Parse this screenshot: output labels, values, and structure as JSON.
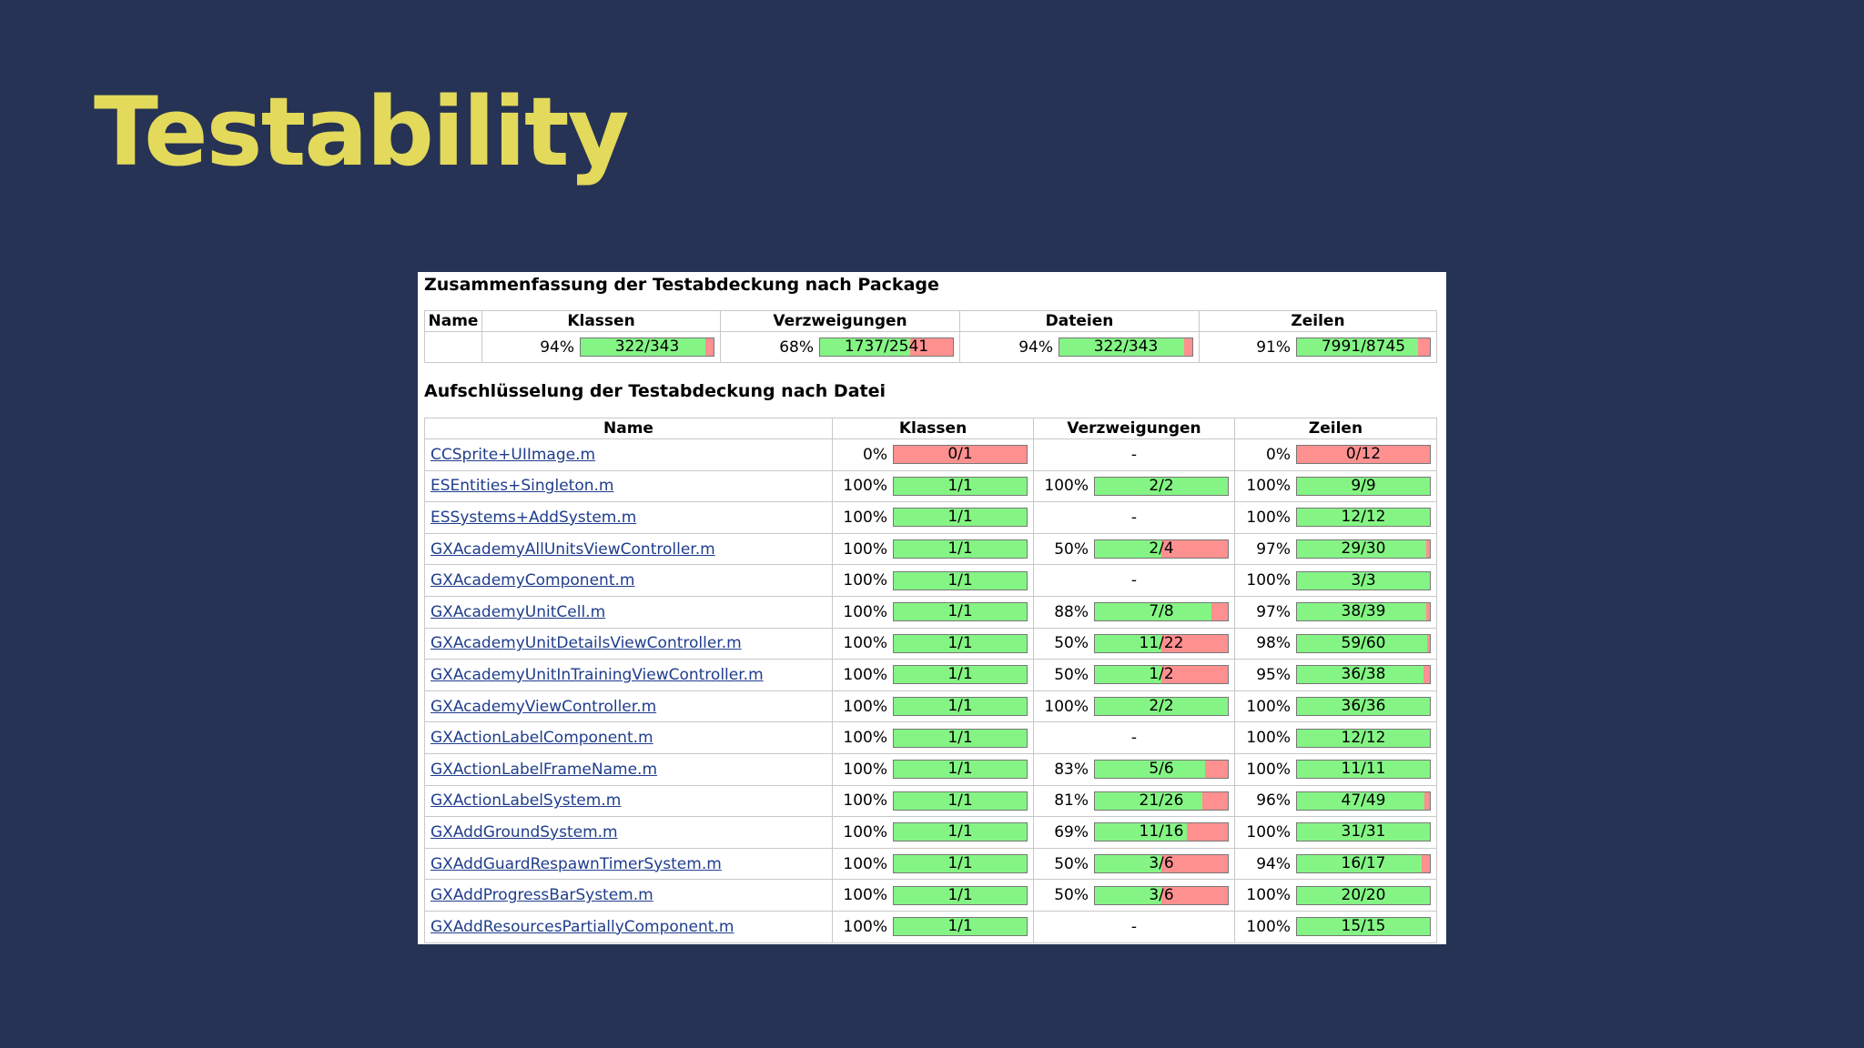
{
  "slide": {
    "title": "Testability"
  },
  "colors": {
    "background": "#263354",
    "title": "#e3d95b",
    "covered": "#84f584",
    "uncovered": "#ff9090",
    "link": "#1f3d8c"
  },
  "summary": {
    "title": "Zusammenfassung der Testabdeckung nach Package",
    "headers": [
      "Name",
      "Klassen",
      "Verzweigungen",
      "Dateien",
      "Zeilen"
    ],
    "row": {
      "name": "",
      "metrics": [
        {
          "pct": "94%",
          "label": "322/343",
          "fraction": 0.94
        },
        {
          "pct": "68%",
          "label": "1737/2541",
          "fraction": 0.68
        },
        {
          "pct": "94%",
          "label": "322/343",
          "fraction": 0.94
        },
        {
          "pct": "91%",
          "label": "7991/8745",
          "fraction": 0.91
        }
      ]
    }
  },
  "detail": {
    "title": "Aufschlüsselung der Testabdeckung nach Datei",
    "headers": [
      "Name",
      "Klassen",
      "Verzweigungen",
      "Zeilen"
    ],
    "rows": [
      {
        "name": "CCSprite+UIImage.m",
        "klassen": {
          "pct": "0%",
          "label": "0/1",
          "fraction": 0
        },
        "verzweigungen": null,
        "zeilen": {
          "pct": "0%",
          "label": "0/12",
          "fraction": 0
        }
      },
      {
        "name": "ESEntities+Singleton.m",
        "klassen": {
          "pct": "100%",
          "label": "1/1",
          "fraction": 1
        },
        "verzweigungen": {
          "pct": "100%",
          "label": "2/2",
          "fraction": 1
        },
        "zeilen": {
          "pct": "100%",
          "label": "9/9",
          "fraction": 1
        }
      },
      {
        "name": "ESSystems+AddSystem.m",
        "klassen": {
          "pct": "100%",
          "label": "1/1",
          "fraction": 1
        },
        "verzweigungen": null,
        "zeilen": {
          "pct": "100%",
          "label": "12/12",
          "fraction": 1
        }
      },
      {
        "name": "GXAcademyAllUnitsViewController.m",
        "klassen": {
          "pct": "100%",
          "label": "1/1",
          "fraction": 1
        },
        "verzweigungen": {
          "pct": "50%",
          "label": "2/4",
          "fraction": 0.5
        },
        "zeilen": {
          "pct": "97%",
          "label": "29/30",
          "fraction": 0.97
        }
      },
      {
        "name": "GXAcademyComponent.m",
        "klassen": {
          "pct": "100%",
          "label": "1/1",
          "fraction": 1
        },
        "verzweigungen": null,
        "zeilen": {
          "pct": "100%",
          "label": "3/3",
          "fraction": 1
        }
      },
      {
        "name": "GXAcademyUnitCell.m",
        "klassen": {
          "pct": "100%",
          "label": "1/1",
          "fraction": 1
        },
        "verzweigungen": {
          "pct": "88%",
          "label": "7/8",
          "fraction": 0.88
        },
        "zeilen": {
          "pct": "97%",
          "label": "38/39",
          "fraction": 0.97
        }
      },
      {
        "name": "GXAcademyUnitDetailsViewController.m",
        "klassen": {
          "pct": "100%",
          "label": "1/1",
          "fraction": 1
        },
        "verzweigungen": {
          "pct": "50%",
          "label": "11/22",
          "fraction": 0.5
        },
        "zeilen": {
          "pct": "98%",
          "label": "59/60",
          "fraction": 0.98
        }
      },
      {
        "name": "GXAcademyUnitInTrainingViewController.m",
        "klassen": {
          "pct": "100%",
          "label": "1/1",
          "fraction": 1
        },
        "verzweigungen": {
          "pct": "50%",
          "label": "1/2",
          "fraction": 0.5
        },
        "zeilen": {
          "pct": "95%",
          "label": "36/38",
          "fraction": 0.95
        }
      },
      {
        "name": "GXAcademyViewController.m",
        "klassen": {
          "pct": "100%",
          "label": "1/1",
          "fraction": 1
        },
        "verzweigungen": {
          "pct": "100%",
          "label": "2/2",
          "fraction": 1
        },
        "zeilen": {
          "pct": "100%",
          "label": "36/36",
          "fraction": 1
        }
      },
      {
        "name": "GXActionLabelComponent.m",
        "klassen": {
          "pct": "100%",
          "label": "1/1",
          "fraction": 1
        },
        "verzweigungen": null,
        "zeilen": {
          "pct": "100%",
          "label": "12/12",
          "fraction": 1
        }
      },
      {
        "name": "GXActionLabelFrameName.m",
        "klassen": {
          "pct": "100%",
          "label": "1/1",
          "fraction": 1
        },
        "verzweigungen": {
          "pct": "83%",
          "label": "5/6",
          "fraction": 0.83
        },
        "zeilen": {
          "pct": "100%",
          "label": "11/11",
          "fraction": 1
        }
      },
      {
        "name": "GXActionLabelSystem.m",
        "klassen": {
          "pct": "100%",
          "label": "1/1",
          "fraction": 1
        },
        "verzweigungen": {
          "pct": "81%",
          "label": "21/26",
          "fraction": 0.81
        },
        "zeilen": {
          "pct": "96%",
          "label": "47/49",
          "fraction": 0.96
        }
      },
      {
        "name": "GXAddGroundSystem.m",
        "klassen": {
          "pct": "100%",
          "label": "1/1",
          "fraction": 1
        },
        "verzweigungen": {
          "pct": "69%",
          "label": "11/16",
          "fraction": 0.69
        },
        "zeilen": {
          "pct": "100%",
          "label": "31/31",
          "fraction": 1
        }
      },
      {
        "name": "GXAddGuardRespawnTimerSystem.m",
        "klassen": {
          "pct": "100%",
          "label": "1/1",
          "fraction": 1
        },
        "verzweigungen": {
          "pct": "50%",
          "label": "3/6",
          "fraction": 0.5
        },
        "zeilen": {
          "pct": "94%",
          "label": "16/17",
          "fraction": 0.94
        }
      },
      {
        "name": "GXAddProgressBarSystem.m",
        "klassen": {
          "pct": "100%",
          "label": "1/1",
          "fraction": 1
        },
        "verzweigungen": {
          "pct": "50%",
          "label": "3/6",
          "fraction": 0.5
        },
        "zeilen": {
          "pct": "100%",
          "label": "20/20",
          "fraction": 1
        }
      },
      {
        "name": "GXAddResourcesPartiallyComponent.m",
        "klassen": {
          "pct": "100%",
          "label": "1/1",
          "fraction": 1
        },
        "verzweigungen": null,
        "zeilen": {
          "pct": "100%",
          "label": "15/15",
          "fraction": 1
        }
      }
    ],
    "empty_placeholder": "-"
  }
}
